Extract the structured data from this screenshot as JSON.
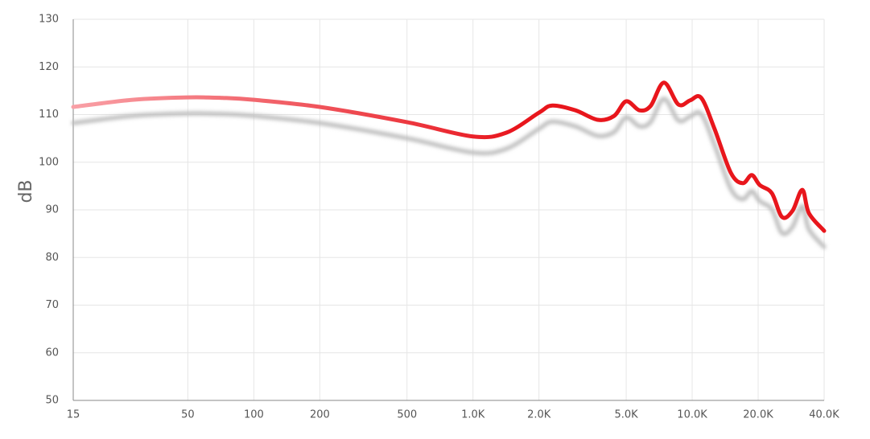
{
  "chart_data": {
    "type": "line",
    "y_label": "dB",
    "xscale": "log",
    "grid": true,
    "xlim": [
      15,
      40000
    ],
    "ylim": [
      50,
      130
    ],
    "xticks": [
      15,
      50,
      100,
      200,
      500,
      {
        "value": 1000,
        "label": "1.0K"
      },
      {
        "value": 2000,
        "label": "2.0K"
      },
      {
        "value": 5000,
        "label": "5.0K"
      },
      {
        "value": 10000,
        "label": "10.0K"
      },
      {
        "value": 20000,
        "label": "20.0K"
      },
      {
        "value": 40000,
        "label": "40.0K"
      }
    ],
    "yticks": [
      50,
      60,
      70,
      80,
      90,
      100,
      110,
      120,
      130
    ],
    "x": [
      15,
      28,
      50,
      72,
      100,
      200,
      500,
      1000,
      1420,
      2000,
      2300,
      2930,
      3710,
      4400,
      5000,
      5740,
      6460,
      7430,
      8660,
      9800,
      11000,
      12650,
      15000,
      17000,
      18700,
      20350,
      23100,
      25700,
      28700,
      31800,
      34100,
      40000
    ],
    "series": [
      {
        "color": "#e8141c",
        "color_start": "#f9a0a6",
        "shadow_color": "#bbbbbb",
        "values": [
          111.6,
          113.1,
          113.6,
          113.5,
          113.1,
          111.6,
          108.4,
          105.4,
          106.2,
          110.4,
          111.9,
          110.9,
          108.9,
          109.7,
          112.8,
          110.9,
          111.8,
          116.7,
          112.1,
          113.0,
          113.5,
          107.0,
          97.8,
          95.6,
          97.3,
          95.2,
          93.5,
          88.5,
          89.8,
          94.2,
          89.3,
          85.6
        ]
      }
    ]
  }
}
